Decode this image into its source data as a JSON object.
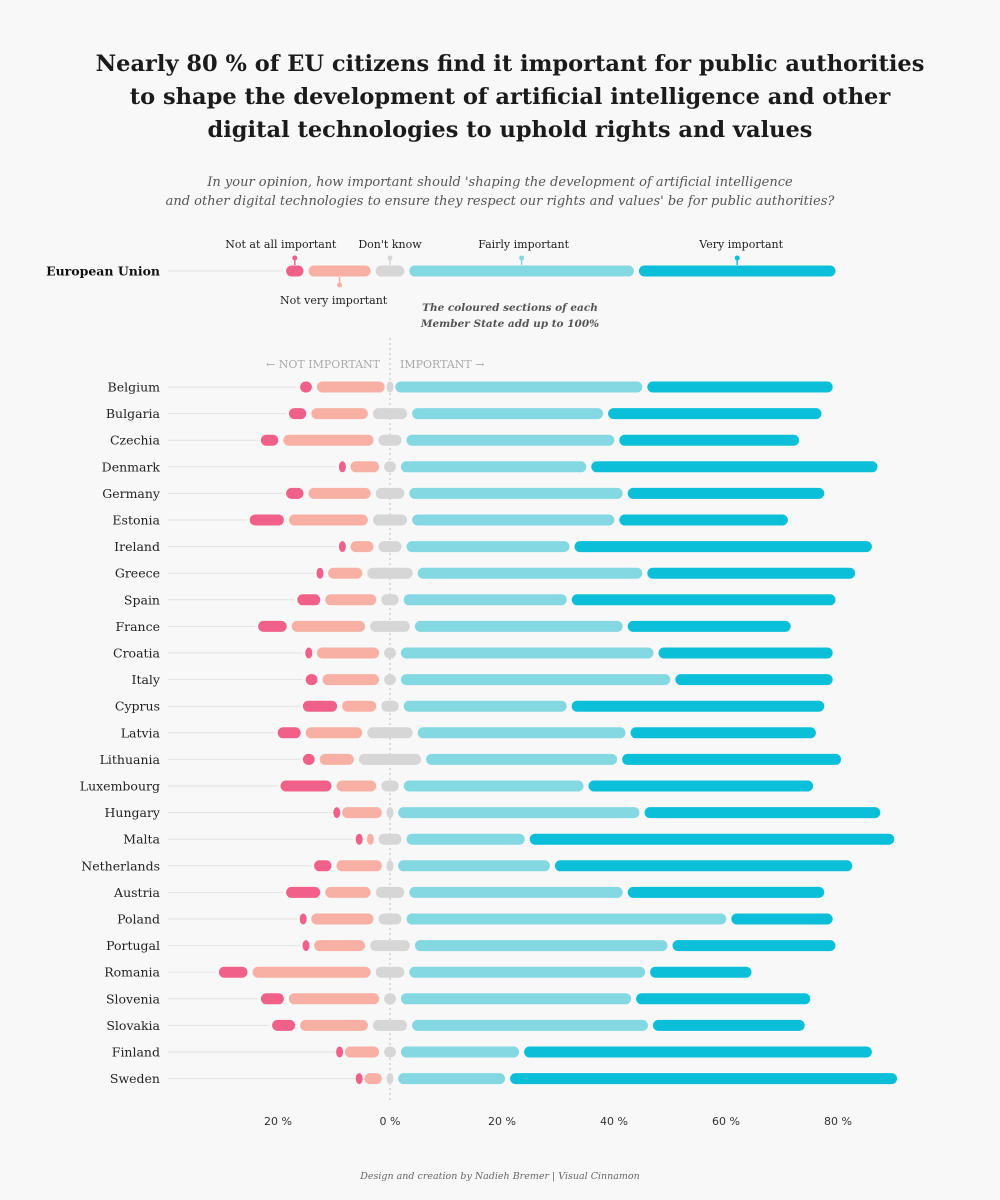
{
  "title": "Nearly 80 % of EU citizens find it important for public authorities to shape the development of artificial intelligence and other digital technologies to uphold rights and values",
  "subtitle_line1": "In your opinion, how important should 'shaping the development of artificial intelligence",
  "subtitle_line2": "and other digital technologies to ensure they respect our rights and values' be for public authorities?",
  "note_line1": "The coloured sections of each",
  "note_line2": "Member State add up to 100%",
  "direction_left": "← NOT IMPORTANT",
  "direction_right": "IMPORTANT →",
  "footer": "Design and creation by Nadieh Bremer | Visual Cinnamon",
  "colors": {
    "not_at_all": "#f06089",
    "not_very": "#f8b0a4",
    "dont_know": "#d6d6d6",
    "fairly": "#84d8e2",
    "very": "#0bbfd9",
    "guide": "#e2e2e2"
  },
  "chart_data": {
    "type": "bar",
    "subtype": "diverging stacked bar",
    "x_unit": "%",
    "xlim": [
      -40,
      92
    ],
    "x_ticks": [
      -20,
      0,
      20,
      40,
      60,
      80
    ],
    "x_tick_labels": [
      "20 %",
      "0 %",
      "20 %",
      "40 %",
      "60 %",
      "80 %"
    ],
    "series": [
      {
        "name": "Not at all important",
        "key": "not_at_all"
      },
      {
        "name": "Not very important",
        "key": "not_very"
      },
      {
        "name": "Don't know",
        "key": "dont_know"
      },
      {
        "name": "Fairly important",
        "key": "fairly"
      },
      {
        "name": "Very important",
        "key": "very"
      }
    ],
    "summary": {
      "country": "European Union",
      "values": [
        4,
        12,
        6,
        41,
        36
      ]
    },
    "categories": [
      "Belgium",
      "Bulgaria",
      "Czechia",
      "Denmark",
      "Germany",
      "Estonia",
      "Ireland",
      "Greece",
      "Spain",
      "France",
      "Croatia",
      "Italy",
      "Cyprus",
      "Latvia",
      "Lithuania",
      "Luxembourg",
      "Hungary",
      "Malta",
      "Netherlands",
      "Austria",
      "Poland",
      "Portugal",
      "Romania",
      "Slovenia",
      "Slovakia",
      "Finland",
      "Sweden"
    ],
    "values": [
      [
        3,
        13,
        1,
        45,
        34
      ],
      [
        4,
        11,
        7,
        35,
        39
      ],
      [
        4,
        17,
        5,
        38,
        33
      ],
      [
        2,
        6,
        3,
        34,
        52
      ],
      [
        4,
        12,
        6,
        39,
        36
      ],
      [
        7,
        15,
        7,
        37,
        31
      ],
      [
        2,
        5,
        5,
        30,
        54
      ],
      [
        2,
        7,
        9,
        41,
        38
      ],
      [
        5,
        10,
        4,
        30,
        48
      ],
      [
        6,
        14,
        8,
        38,
        30
      ],
      [
        2,
        12,
        3,
        46,
        32
      ],
      [
        3,
        11,
        3,
        49,
        29
      ],
      [
        7,
        7,
        4,
        30,
        46
      ],
      [
        5,
        11,
        9,
        38,
        34
      ],
      [
        3,
        7,
        12,
        35,
        40
      ],
      [
        10,
        8,
        4,
        33,
        41
      ],
      [
        1,
        8,
        2,
        44,
        43
      ],
      [
        2,
        2,
        5,
        22,
        66
      ],
      [
        4,
        9,
        2,
        28,
        54
      ],
      [
        7,
        9,
        6,
        39,
        36
      ],
      [
        2,
        12,
        5,
        58,
        19
      ],
      [
        2,
        10,
        8,
        46,
        30
      ],
      [
        6,
        22,
        6,
        43,
        19
      ],
      [
        5,
        17,
        3,
        42,
        32
      ],
      [
        5,
        13,
        7,
        43,
        28
      ],
      [
        1,
        7,
        3,
        22,
        63
      ],
      [
        1,
        4,
        2,
        20,
        70
      ]
    ]
  }
}
